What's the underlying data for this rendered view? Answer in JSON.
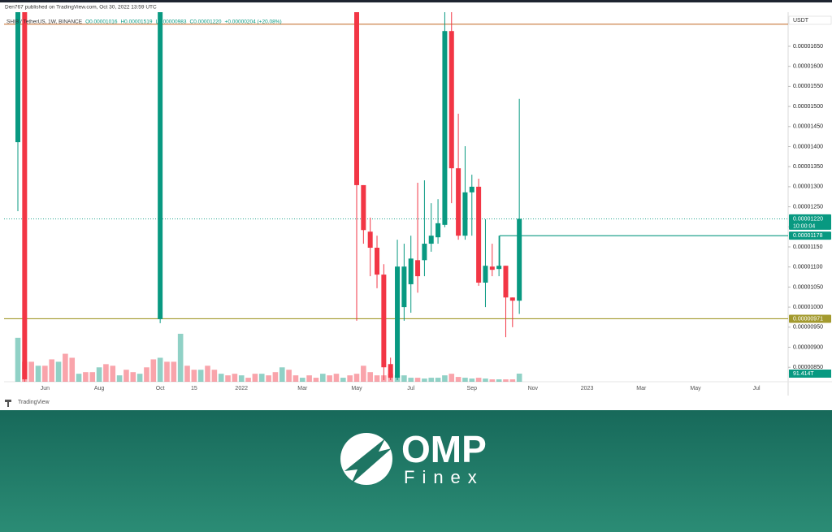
{
  "header": {
    "text": "Den767 published on TradingView.com, Oct 30, 2022 13:59 UTC"
  },
  "footer": {
    "tradingview": "TradingView"
  },
  "branding": {
    "name": "OMP",
    "tagline": "Finex"
  },
  "chart_data": {
    "type": "candlestick",
    "legend": {
      "symbol": "SHIB / TetherUS, 1W, BINANCE",
      "open": "O0.00001016",
      "high": "H0.00001519",
      "low": "L0.00000983",
      "close": "C0.00001220",
      "change": "+0.00000204 (+20.08%)"
    },
    "currency": "USDT",
    "categories": [
      null,
      null,
      null,
      null,
      "Jun",
      null,
      null,
      null,
      null,
      null,
      null,
      null,
      "Aug",
      null,
      null,
      null,
      null,
      null,
      null,
      null,
      null,
      "Oct",
      null,
      null,
      null,
      null,
      "15",
      null,
      null,
      null,
      null,
      null,
      null,
      "2022",
      null,
      null,
      null,
      null,
      null,
      null,
      null,
      null,
      "Mar",
      null,
      null,
      null,
      null,
      null,
      null,
      null,
      "May",
      null,
      null,
      null,
      null,
      null,
      null,
      null,
      "Jul",
      null,
      null,
      null,
      null,
      null,
      null,
      null,
      null,
      "Sep",
      null,
      null,
      null,
      null,
      null,
      null,
      null,
      null,
      "Nov",
      null,
      null,
      null,
      null,
      null,
      null,
      null,
      "2023",
      null,
      null,
      null,
      null,
      null,
      null,
      null,
      "Mar",
      null,
      null,
      null,
      null,
      null,
      null,
      null,
      "May",
      null,
      null,
      null,
      null,
      null,
      null,
      null,
      null,
      "Jul"
    ],
    "open": [
      1.411e-05,
      1.9e-05,
      null,
      null,
      null,
      null,
      null,
      null,
      null,
      null,
      null,
      null,
      null,
      null,
      null,
      null,
      null,
      null,
      null,
      null,
      null,
      9.7e-06,
      null,
      null,
      null,
      null,
      null,
      null,
      null,
      null,
      null,
      null,
      null,
      null,
      null,
      null,
      null,
      null,
      null,
      null,
      null,
      null,
      null,
      null,
      null,
      null,
      null,
      null,
      null,
      null,
      1.78e-05,
      1.304e-05,
      1.188e-05,
      1.148e-05,
      1.081e-05,
      8.58e-06,
      8.24e-06,
      1e-05,
      1.057e-05,
      1.117e-05,
      1.117e-05,
      1.158e-05,
      1.174e-05,
      1.205e-05,
      1.688e-05,
      1.346e-05,
      1.178e-05,
      1.286e-05,
      1.3e-05,
      1.061e-05,
      1.101e-05,
      1.095e-05,
      1.103e-05,
      1.024e-05,
      1.016e-05,
      null,
      null,
      null,
      null,
      null,
      null,
      null,
      null,
      null,
      null,
      null,
      null,
      null,
      null,
      null,
      null,
      null,
      null,
      null,
      null,
      null,
      null,
      null,
      null,
      null,
      null,
      null,
      null,
      null,
      null,
      null,
      null,
      null,
      null,
      null
    ],
    "high": [
      2e-05,
      1.95e-05,
      null,
      null,
      null,
      null,
      null,
      null,
      null,
      null,
      null,
      null,
      null,
      null,
      null,
      null,
      null,
      null,
      null,
      null,
      null,
      3.5e-05,
      null,
      null,
      null,
      null,
      null,
      null,
      null,
      null,
      null,
      null,
      null,
      null,
      null,
      null,
      null,
      null,
      null,
      null,
      null,
      null,
      null,
      null,
      null,
      null,
      null,
      null,
      null,
      null,
      1.85e-05,
      1.304e-05,
      1.223e-05,
      1.178e-05,
      1.107e-05,
      8.74e-06,
      1.168e-05,
      1.158e-05,
      1.178e-05,
      1.31e-05,
      1.316e-05,
      1.259e-05,
      1.269e-05,
      1.74e-05,
      1.74e-05,
      1.482e-05,
      1.401e-05,
      1.33e-05,
      1.32e-05,
      1.219e-05,
      1.158e-05,
      1.178e-05,
      1.103e-05,
      1.024e-05,
      1.519e-05,
      null,
      null,
      null,
      null,
      null,
      null,
      null,
      null,
      null,
      null,
      null,
      null,
      null,
      null,
      null,
      null,
      null,
      null,
      null,
      null,
      null,
      null,
      null,
      null,
      null,
      null,
      null,
      null,
      null,
      null,
      null,
      null,
      null,
      null,
      null
    ],
    "low": [
      1.239e-05,
      8e-06,
      null,
      null,
      null,
      null,
      null,
      null,
      null,
      null,
      null,
      null,
      null,
      null,
      null,
      null,
      null,
      null,
      null,
      null,
      null,
      9.6e-06,
      null,
      null,
      null,
      null,
      null,
      null,
      null,
      null,
      null,
      null,
      null,
      null,
      null,
      null,
      null,
      null,
      null,
      null,
      null,
      null,
      null,
      null,
      null,
      null,
      null,
      null,
      null,
      null,
      9.66e-06,
      1.158e-05,
      1.077e-05,
      1.047e-05,
      8.18e-06,
      8.18e-06,
      8.18e-06,
      9.66e-06,
      9.86e-06,
      1.036e-05,
      1.077e-05,
      1.138e-05,
      1.158e-05,
      1.199e-05,
      1.259e-05,
      1.168e-05,
      1.168e-05,
      1.178e-05,
      1.053e-05,
      1e-05,
      1.077e-05,
      1.077e-05,
      9.25e-06,
      9.5e-06,
      9.83e-06,
      null,
      null,
      null,
      null,
      null,
      null,
      null,
      null,
      null,
      null,
      null,
      null,
      null,
      null,
      null,
      null,
      null,
      null,
      null,
      null,
      null,
      null,
      null,
      null,
      null,
      null,
      null,
      null,
      null,
      null,
      null,
      null,
      null,
      null,
      null
    ],
    "close": [
      1.9e-05,
      8.2e-06,
      null,
      null,
      null,
      null,
      null,
      null,
      null,
      null,
      null,
      null,
      null,
      null,
      null,
      null,
      null,
      null,
      null,
      null,
      null,
      2.9e-05,
      null,
      null,
      null,
      null,
      null,
      null,
      null,
      null,
      null,
      null,
      null,
      null,
      null,
      null,
      null,
      null,
      null,
      null,
      null,
      null,
      null,
      null,
      null,
      null,
      null,
      null,
      null,
      null,
      1.304e-05,
      1.192e-05,
      1.148e-05,
      1.081e-05,
      8.5e-06,
      8.24e-06,
      1.101e-05,
      1.101e-05,
      1.121e-05,
      1.077e-05,
      1.158e-05,
      1.178e-05,
      1.209e-05,
      1.688e-05,
      1.346e-05,
      1.178e-05,
      1.286e-05,
      1.3e-05,
      1.061e-05,
      1.103e-05,
      1.093e-05,
      1.103e-05,
      1.024e-05,
      1.016e-05,
      1.22e-05,
      null,
      null,
      null,
      null,
      null,
      null,
      null,
      null,
      null,
      null,
      null,
      null,
      null,
      null,
      null,
      null,
      null,
      null,
      null,
      null,
      null,
      null,
      null,
      null,
      null,
      null,
      null,
      null,
      null,
      null,
      null,
      null,
      null,
      null,
      null
    ],
    "volume": [
      495000000000000.0,
      225000000000000.0,
      225000000000000.0,
      180000000000000.0,
      180000000000000.0,
      252000000000000.0,
      225000000000000.0,
      315000000000000.0,
      270000000000000.0,
      90000000000000.0,
      108000000000000.0,
      108000000000000.0,
      162000000000000.0,
      198000000000000.0,
      180000000000000.0,
      72000000000000.0,
      135000000000000.0,
      108000000000000.0,
      90000000000000.0,
      162000000000000.0,
      252000000000000.0,
      270000000000000.0,
      225000000000000.0,
      225000000000000.0,
      540000000000000.0,
      180000000000000.0,
      135000000000000.0,
      135000000000000.0,
      180000000000000.0,
      135000000000000.0,
      90000000000000.0,
      72000000000000.0,
      90000000000000.0,
      72000000000000.0,
      45000000000000.0,
      90000000000000.0,
      90000000000000.0,
      72000000000000.0,
      108000000000000.0,
      162000000000000.0,
      135000000000000.0,
      72000000000000.0,
      45000000000000.0,
      72000000000000.0,
      45000000000000.0,
      90000000000000.0,
      72000000000000.0,
      90000000000000.0,
      45000000000000.0,
      72000000000000.0,
      90000000000000.0,
      180000000000000.0,
      108000000000000.0,
      72000000000000.0,
      72000000000000.0,
      90000000000000.0,
      72000000000000.0,
      72000000000000.0,
      45000000000000.0,
      45000000000000.0,
      36000000000000.0,
      45000000000000.0,
      45000000000000.0,
      72000000000000.0,
      90000000000000.0,
      54000000000000.0,
      45000000000000.0,
      36000000000000.0,
      45000000000000.0,
      36000000000000.0,
      27000000000000.0,
      27000000000000.0,
      27000000000000.0,
      27000000000000.0,
      91414000000000,
      null,
      null,
      null,
      null,
      null,
      null,
      null,
      null,
      null,
      null,
      null,
      null,
      null,
      null,
      null,
      null,
      null,
      null,
      null,
      null,
      null,
      null,
      null,
      null,
      null,
      null,
      null,
      null,
      null,
      null,
      null,
      null,
      null,
      null,
      null
    ],
    "volume_last_label": "91.414T",
    "volume_ylim": [
      0,
      4160000000000000.0
    ],
    "up_color": "#089981",
    "down_color": "#f23645",
    "ylim": [
      8.14e-06,
      1.735e-05
    ],
    "yticks": [
      {
        "value": 8.5e-06,
        "label": "0.00000850"
      },
      {
        "value": 9e-06,
        "label": "0.00000900"
      },
      {
        "value": 9.5e-06,
        "label": "0.00000950"
      },
      {
        "value": 1e-05,
        "label": "0.00001000"
      },
      {
        "value": 1.05e-05,
        "label": "0.00001050"
      },
      {
        "value": 1.1e-05,
        "label": "0.00001100"
      },
      {
        "value": 1.15e-05,
        "label": "0.00001150"
      },
      {
        "value": 1.2e-05,
        "label": "0.00001200"
      },
      {
        "value": 1.25e-05,
        "label": "0.00001250"
      },
      {
        "value": 1.3e-05,
        "label": "0.00001300"
      },
      {
        "value": 1.35e-05,
        "label": "0.00001350"
      },
      {
        "value": 1.4e-05,
        "label": "0.00001400"
      },
      {
        "value": 1.45e-05,
        "label": "0.00001450"
      },
      {
        "value": 1.5e-05,
        "label": "0.00001500"
      },
      {
        "value": 1.55e-05,
        "label": "0.00001550"
      },
      {
        "value": 1.6e-05,
        "label": "0.00001600"
      },
      {
        "value": 1.65e-05,
        "label": "0.00001650"
      }
    ],
    "grid": false,
    "price_lines": [
      {
        "value": 1.22e-05,
        "label": "0.00001220",
        "countdown": "10:00:04",
        "color": "#089981",
        "style": "dotted"
      },
      {
        "value": 1.178e-05,
        "label": "0.00001178",
        "color": "#089981",
        "style": "solid"
      },
      {
        "value": 9.71e-06,
        "label": "0.00000971",
        "color": "#a39a2e",
        "style": "solid"
      },
      {
        "value": 1.705e-05,
        "color": "#c8773a",
        "style": "solid"
      }
    ]
  }
}
